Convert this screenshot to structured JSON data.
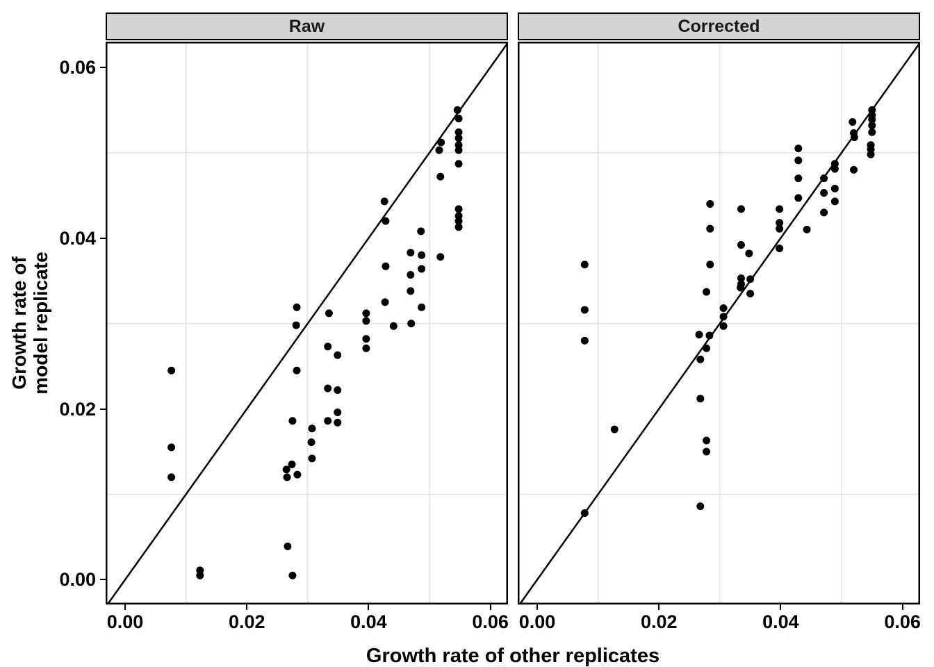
{
  "chart_data": {
    "type": "scatter",
    "xlabel": "Growth rate of other replicates",
    "ylabel_lines": [
      "Growth rate of",
      "model replicate"
    ],
    "x_breaks": [
      0,
      0.02,
      0.04,
      0.06
    ],
    "x_tick_labels": [
      "0.00",
      "0.02",
      "0.04",
      "0.06"
    ],
    "y_breaks": [
      0,
      0.02,
      0.04,
      0.06
    ],
    "y_tick_labels": [
      "0.00",
      "0.02",
      "0.04",
      "0.06"
    ],
    "minor_breaks": [
      0.01,
      0.03,
      0.05
    ],
    "xlim": [
      -0.0032,
      0.0629
    ],
    "ylim": [
      -0.0029,
      0.063
    ],
    "grid": "minor-only",
    "reference_line": "y = x",
    "point_color": "#000000",
    "line_color": "#000000",
    "grid_color": "#e3e3e3",
    "strip_bg": "#d4d4d4",
    "facets": [
      {
        "label": "Raw",
        "points": [
          [
            0.0546,
            0.055
          ],
          [
            0.0548,
            0.054
          ],
          [
            0.0548,
            0.0524
          ],
          [
            0.0548,
            0.0517
          ],
          [
            0.0548,
            0.0509
          ],
          [
            0.0548,
            0.0503
          ],
          [
            0.0519,
            0.0512
          ],
          [
            0.0516,
            0.0503
          ],
          [
            0.0548,
            0.0487
          ],
          [
            0.0518,
            0.0472
          ],
          [
            0.0426,
            0.0443
          ],
          [
            0.0428,
            0.042
          ],
          [
            0.0548,
            0.0434
          ],
          [
            0.0548,
            0.0426
          ],
          [
            0.0548,
            0.042
          ],
          [
            0.0548,
            0.0413
          ],
          [
            0.0486,
            0.0408
          ],
          [
            0.0469,
            0.0383
          ],
          [
            0.0487,
            0.038
          ],
          [
            0.0518,
            0.0378
          ],
          [
            0.0428,
            0.0367
          ],
          [
            0.0487,
            0.0364
          ],
          [
            0.0469,
            0.0357
          ],
          [
            0.0469,
            0.0338
          ],
          [
            0.0427,
            0.0325
          ],
          [
            0.0487,
            0.0319
          ],
          [
            0.0335,
            0.0312
          ],
          [
            0.0396,
            0.0312
          ],
          [
            0.0396,
            0.0303
          ],
          [
            0.0441,
            0.0297
          ],
          [
            0.047,
            0.03
          ],
          [
            0.0396,
            0.0282
          ],
          [
            0.0333,
            0.0273
          ],
          [
            0.0396,
            0.0271
          ],
          [
            0.0349,
            0.0263
          ],
          [
            0.0333,
            0.0224
          ],
          [
            0.0349,
            0.0222
          ],
          [
            0.0349,
            0.0196
          ],
          [
            0.0333,
            0.0186
          ],
          [
            0.0349,
            0.0184
          ],
          [
            0.0307,
            0.0177
          ],
          [
            0.0306,
            0.0161
          ],
          [
            0.0307,
            0.0142
          ],
          [
            0.0282,
            0.0319
          ],
          [
            0.0281,
            0.0298
          ],
          [
            0.0076,
            0.0245
          ],
          [
            0.0282,
            0.0245
          ],
          [
            0.0275,
            0.0186
          ],
          [
            0.0076,
            0.0155
          ],
          [
            0.0076,
            0.012
          ],
          [
            0.0274,
            0.0135
          ],
          [
            0.0265,
            0.0129
          ],
          [
            0.0283,
            0.0123
          ],
          [
            0.0266,
            0.012
          ],
          [
            0.0267,
            0.0039
          ],
          [
            0.0123,
            0.0011
          ],
          [
            0.0123,
            0.0005
          ],
          [
            0.0275,
            0.0005
          ]
        ]
      },
      {
        "label": "Corrected",
        "points": [
          [
            0.055,
            0.055
          ],
          [
            0.055,
            0.0544
          ],
          [
            0.055,
            0.0539
          ],
          [
            0.055,
            0.0532
          ],
          [
            0.055,
            0.0524
          ],
          [
            0.0518,
            0.0536
          ],
          [
            0.052,
            0.0523
          ],
          [
            0.0521,
            0.0518
          ],
          [
            0.0548,
            0.0509
          ],
          [
            0.0548,
            0.0504
          ],
          [
            0.0548,
            0.0498
          ],
          [
            0.0429,
            0.0505
          ],
          [
            0.0429,
            0.0491
          ],
          [
            0.0489,
            0.0487
          ],
          [
            0.0489,
            0.0481
          ],
          [
            0.052,
            0.048
          ],
          [
            0.0429,
            0.047
          ],
          [
            0.0471,
            0.047
          ],
          [
            0.0489,
            0.0458
          ],
          [
            0.0471,
            0.0453
          ],
          [
            0.0429,
            0.0447
          ],
          [
            0.0489,
            0.0443
          ],
          [
            0.0335,
            0.0434
          ],
          [
            0.0398,
            0.0434
          ],
          [
            0.0471,
            0.043
          ],
          [
            0.0398,
            0.0418
          ],
          [
            0.0398,
            0.0411
          ],
          [
            0.0443,
            0.041
          ],
          [
            0.0335,
            0.0392
          ],
          [
            0.0398,
            0.0388
          ],
          [
            0.0348,
            0.0382
          ],
          [
            0.0335,
            0.0353
          ],
          [
            0.035,
            0.0352
          ],
          [
            0.0335,
            0.0346
          ],
          [
            0.0334,
            0.0342
          ],
          [
            0.035,
            0.0335
          ],
          [
            0.0284,
            0.044
          ],
          [
            0.0284,
            0.0411
          ],
          [
            0.0078,
            0.0369
          ],
          [
            0.0284,
            0.0369
          ],
          [
            0.0278,
            0.0337
          ],
          [
            0.0078,
            0.0316
          ],
          [
            0.0306,
            0.0318
          ],
          [
            0.0306,
            0.0308
          ],
          [
            0.0306,
            0.0297
          ],
          [
            0.0078,
            0.028
          ],
          [
            0.0266,
            0.0287
          ],
          [
            0.0283,
            0.0286
          ],
          [
            0.0278,
            0.0271
          ],
          [
            0.0268,
            0.0258
          ],
          [
            0.0127,
            0.0176
          ],
          [
            0.0268,
            0.0212
          ],
          [
            0.0278,
            0.0163
          ],
          [
            0.0278,
            0.015
          ],
          [
            0.0268,
            0.0086
          ],
          [
            0.0078,
            0.0078
          ]
        ]
      }
    ]
  }
}
